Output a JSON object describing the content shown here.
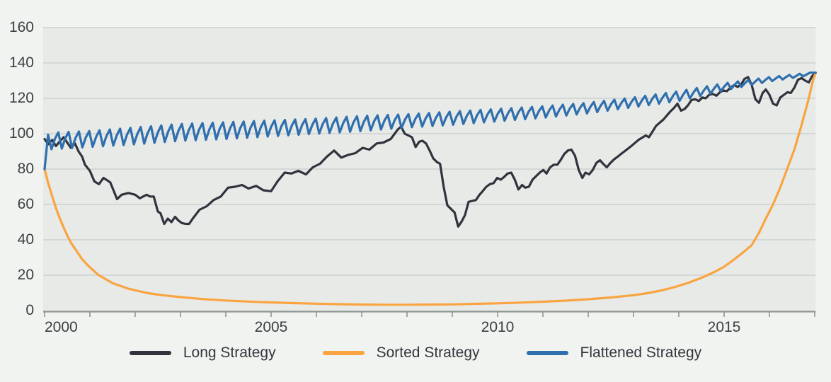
{
  "chart_data": {
    "type": "line",
    "title": "",
    "x_axis": {
      "range": [
        2000,
        2017.02
      ],
      "tick_interval_years": 1,
      "labeled_ticks": [
        2000,
        2005,
        2010,
        2015
      ],
      "tick_labels": [
        "2000",
        "2005",
        "2010",
        "2015"
      ]
    },
    "y_axis": {
      "range": [
        0,
        160
      ],
      "tick_step": 20,
      "tick_labels": [
        "0",
        "20",
        "40",
        "60",
        "80",
        "100",
        "120",
        "140",
        "160"
      ]
    },
    "legend_position": "bottom",
    "grid": true,
    "series": [
      {
        "name": "Long Strategy",
        "color": "#30333c",
        "points": [
          [
            2000,
            97
          ],
          [
            2000.08,
            94
          ],
          [
            2000.17,
            96.5
          ],
          [
            2000.25,
            93
          ],
          [
            2000.33,
            95.5
          ],
          [
            2000.42,
            98
          ],
          [
            2000.5,
            95
          ],
          [
            2000.58,
            92
          ],
          [
            2000.67,
            94.5
          ],
          [
            2000.75,
            90
          ],
          [
            2000.83,
            87
          ],
          [
            2000.89,
            82.5
          ],
          [
            2001,
            79
          ],
          [
            2001.1,
            73
          ],
          [
            2001.2,
            71.5
          ],
          [
            2001.3,
            75
          ],
          [
            2001.45,
            72.5
          ],
          [
            2001.6,
            63
          ],
          [
            2001.7,
            65.5
          ],
          [
            2001.85,
            66.5
          ],
          [
            2002,
            65.5
          ],
          [
            2002.1,
            63.5
          ],
          [
            2002.25,
            65.5
          ],
          [
            2002.33,
            64.5
          ],
          [
            2002.41,
            64.5
          ],
          [
            2002.5,
            56
          ],
          [
            2002.56,
            55
          ],
          [
            2002.64,
            49
          ],
          [
            2002.72,
            52
          ],
          [
            2002.8,
            50
          ],
          [
            2002.88,
            53
          ],
          [
            2002.95,
            51
          ],
          [
            2003.03,
            49.5
          ],
          [
            2003.11,
            49
          ],
          [
            2003.19,
            49
          ],
          [
            2003.27,
            52
          ],
          [
            2003.42,
            57
          ],
          [
            2003.58,
            59
          ],
          [
            2003.73,
            62.5
          ],
          [
            2003.89,
            64.5
          ],
          [
            2004.05,
            69.5
          ],
          [
            2004.2,
            70
          ],
          [
            2004.36,
            71
          ],
          [
            2004.5,
            69
          ],
          [
            2004.67,
            70.5
          ],
          [
            2004.83,
            68
          ],
          [
            2005,
            67.5
          ],
          [
            2005.14,
            73
          ],
          [
            2005.3,
            78
          ],
          [
            2005.45,
            77.5
          ],
          [
            2005.6,
            79
          ],
          [
            2005.77,
            77
          ],
          [
            2005.92,
            81
          ],
          [
            2006.08,
            83
          ],
          [
            2006.23,
            87
          ],
          [
            2006.39,
            90.5
          ],
          [
            2006.55,
            86.5
          ],
          [
            2006.7,
            88
          ],
          [
            2006.86,
            89
          ],
          [
            2007.02,
            92
          ],
          [
            2007.17,
            91
          ],
          [
            2007.33,
            94.5
          ],
          [
            2007.48,
            95
          ],
          [
            2007.64,
            97
          ],
          [
            2007.8,
            102.5
          ],
          [
            2007.87,
            104
          ],
          [
            2007.95,
            100
          ],
          [
            2008.11,
            98
          ],
          [
            2008.19,
            92.5
          ],
          [
            2008.27,
            95.5
          ],
          [
            2008.34,
            96
          ],
          [
            2008.42,
            94.5
          ],
          [
            2008.5,
            90.5
          ],
          [
            2008.58,
            86
          ],
          [
            2008.66,
            84
          ],
          [
            2008.73,
            83
          ],
          [
            2008.81,
            70
          ],
          [
            2008.89,
            59.5
          ],
          [
            2008.97,
            57.5
          ],
          [
            2009.05,
            55.5
          ],
          [
            2009.13,
            47.5
          ],
          [
            2009.21,
            50.5
          ],
          [
            2009.28,
            54
          ],
          [
            2009.36,
            61.5
          ],
          [
            2009.44,
            62
          ],
          [
            2009.52,
            62.5
          ],
          [
            2009.6,
            65.5
          ],
          [
            2009.67,
            67.5
          ],
          [
            2009.75,
            70
          ],
          [
            2009.83,
            71.5
          ],
          [
            2009.91,
            72
          ],
          [
            2009.99,
            75
          ],
          [
            2010.07,
            74
          ],
          [
            2010.14,
            75.5
          ],
          [
            2010.22,
            77.5
          ],
          [
            2010.3,
            78
          ],
          [
            2010.38,
            74
          ],
          [
            2010.46,
            68.5
          ],
          [
            2010.54,
            71
          ],
          [
            2010.61,
            69.5
          ],
          [
            2010.69,
            70
          ],
          [
            2010.77,
            74
          ],
          [
            2010.85,
            76
          ],
          [
            2010.93,
            78
          ],
          [
            2011.01,
            79.5
          ],
          [
            2011.08,
            77.5
          ],
          [
            2011.16,
            81
          ],
          [
            2011.24,
            82.5
          ],
          [
            2011.32,
            82.5
          ],
          [
            2011.4,
            85.5
          ],
          [
            2011.47,
            88.5
          ],
          [
            2011.55,
            90.5
          ],
          [
            2011.63,
            91
          ],
          [
            2011.71,
            87.5
          ],
          [
            2011.79,
            79.5
          ],
          [
            2011.87,
            75
          ],
          [
            2011.94,
            78
          ],
          [
            2012.02,
            77
          ],
          [
            2012.1,
            79.5
          ],
          [
            2012.18,
            83.5
          ],
          [
            2012.26,
            85
          ],
          [
            2012.33,
            83
          ],
          [
            2012.41,
            81
          ],
          [
            2012.49,
            83.5
          ],
          [
            2012.57,
            85.5
          ],
          [
            2012.65,
            87
          ],
          [
            2012.72,
            88.5
          ],
          [
            2012.8,
            90
          ],
          [
            2012.95,
            93
          ],
          [
            2013.11,
            96.5
          ],
          [
            2013.27,
            99
          ],
          [
            2013.34,
            98
          ],
          [
            2013.5,
            104.5
          ],
          [
            2013.66,
            108
          ],
          [
            2013.81,
            112.5
          ],
          [
            2013.89,
            114.5
          ],
          [
            2013.97,
            117
          ],
          [
            2014.05,
            113
          ],
          [
            2014.13,
            114
          ],
          [
            2014.2,
            116
          ],
          [
            2014.28,
            119
          ],
          [
            2014.36,
            119.5
          ],
          [
            2014.44,
            118.5
          ],
          [
            2014.52,
            120.5
          ],
          [
            2014.59,
            120
          ],
          [
            2014.67,
            122
          ],
          [
            2014.75,
            122.5
          ],
          [
            2014.83,
            121.5
          ],
          [
            2014.91,
            123.5
          ],
          [
            2014.98,
            124.5
          ],
          [
            2015.06,
            124
          ],
          [
            2015.14,
            126
          ],
          [
            2015.22,
            127.5
          ],
          [
            2015.3,
            126.5
          ],
          [
            2015.38,
            128
          ],
          [
            2015.45,
            131
          ],
          [
            2015.53,
            132
          ],
          [
            2015.61,
            127.5
          ],
          [
            2015.69,
            119.5
          ],
          [
            2015.77,
            117.5
          ],
          [
            2015.85,
            123
          ],
          [
            2015.92,
            125
          ],
          [
            2016,
            122
          ],
          [
            2016.08,
            117
          ],
          [
            2016.16,
            116
          ],
          [
            2016.24,
            120.5
          ],
          [
            2016.32,
            122
          ],
          [
            2016.4,
            123.5
          ],
          [
            2016.47,
            123
          ],
          [
            2016.55,
            126
          ],
          [
            2016.63,
            130.5
          ],
          [
            2016.71,
            131.5
          ],
          [
            2016.79,
            130
          ],
          [
            2016.87,
            129
          ],
          [
            2016.94,
            132.5
          ],
          [
            2017.02,
            134.5
          ]
        ]
      },
      {
        "name": "Sorted Strategy",
        "color": "#f9a440",
        "points": [
          [
            2000,
            80
          ],
          [
            2000.08,
            72
          ],
          [
            2000.17,
            64.5
          ],
          [
            2000.25,
            58
          ],
          [
            2000.33,
            52.5
          ],
          [
            2000.42,
            47
          ],
          [
            2000.5,
            42.5
          ],
          [
            2000.58,
            38.5
          ],
          [
            2000.67,
            35
          ],
          [
            2000.75,
            32
          ],
          [
            2000.83,
            29
          ],
          [
            2000.92,
            26.5
          ],
          [
            2001,
            24.5
          ],
          [
            2001.17,
            20.5
          ],
          [
            2001.33,
            18
          ],
          [
            2001.5,
            15.5
          ],
          [
            2001.67,
            14
          ],
          [
            2001.83,
            12.5
          ],
          [
            2002,
            11.5
          ],
          [
            2002.25,
            10
          ],
          [
            2002.5,
            9
          ],
          [
            2002.75,
            8.3
          ],
          [
            2003,
            7.6
          ],
          [
            2003.5,
            6.5
          ],
          [
            2004,
            5.7
          ],
          [
            2004.5,
            5.1
          ],
          [
            2005,
            4.6
          ],
          [
            2005.5,
            4.2
          ],
          [
            2006,
            3.9
          ],
          [
            2006.5,
            3.6
          ],
          [
            2007,
            3.4
          ],
          [
            2007.5,
            3.3
          ],
          [
            2008,
            3.3
          ],
          [
            2008.5,
            3.4
          ],
          [
            2009,
            3.5
          ],
          [
            2009.5,
            3.8
          ],
          [
            2010,
            4.1
          ],
          [
            2010.5,
            4.5
          ],
          [
            2011,
            5
          ],
          [
            2011.5,
            5.6
          ],
          [
            2012,
            6.4
          ],
          [
            2012.5,
            7.4
          ],
          [
            2013,
            8.7
          ],
          [
            2013.3,
            9.8
          ],
          [
            2013.6,
            11.3
          ],
          [
            2013.9,
            13.2
          ],
          [
            2014.2,
            15.6
          ],
          [
            2014.5,
            18.5
          ],
          [
            2014.8,
            22
          ],
          [
            2015,
            24.8
          ],
          [
            2015.2,
            28.5
          ],
          [
            2015.4,
            32.5
          ],
          [
            2015.61,
            37
          ],
          [
            2015.77,
            44
          ],
          [
            2015.92,
            52
          ],
          [
            2016.08,
            60
          ],
          [
            2016.23,
            69
          ],
          [
            2016.39,
            80
          ],
          [
            2016.55,
            91
          ],
          [
            2016.7,
            104
          ],
          [
            2016.86,
            119
          ],
          [
            2016.96,
            130
          ],
          [
            2017.02,
            134.5
          ]
        ]
      },
      {
        "name": "Flattened Strategy",
        "color": "#2f6fad",
        "generator": {
          "kind": "sawtooth",
          "start_points": [
            [
              2000,
              80
            ],
            [
              2000.076,
              99.5
            ]
          ],
          "teeth_start": 2000.152,
          "period_years": 0.2273,
          "mid_level": 0.62,
          "anchor_years": [
            2000,
            2001,
            2002,
            2003,
            2004,
            2005,
            2006,
            2007,
            2008,
            2009,
            2010,
            2011,
            2012,
            2013,
            2014,
            2015,
            2016,
            2017
          ],
          "trough_values": [
            91,
            92.5,
            94,
            96,
            97,
            98.5,
            100,
            101.5,
            103.5,
            105,
            107,
            109,
            111.5,
            115,
            118.5,
            124.5,
            129.5,
            133.5
          ],
          "peak_values": [
            100.5,
            101.5,
            103.5,
            105.5,
            106.5,
            107.5,
            108.5,
            110,
            111,
            112.5,
            114,
            115.5,
            117.5,
            120.5,
            124,
            128.5,
            132,
            134.8
          ],
          "end_point": [
            2017.02,
            134.5
          ]
        }
      }
    ]
  },
  "legend": {
    "items": [
      {
        "label": "Long Strategy"
      },
      {
        "label": "Sorted Strategy"
      },
      {
        "label": "Flattened Strategy"
      }
    ]
  },
  "colors": {
    "page_background": "#f1f3f1",
    "plot_background": "#e8eae8",
    "gridline": "#ccd2cf",
    "axis_line": "#8e9692",
    "tick_text": "#3b3f42",
    "legend_text": "#33373c"
  }
}
